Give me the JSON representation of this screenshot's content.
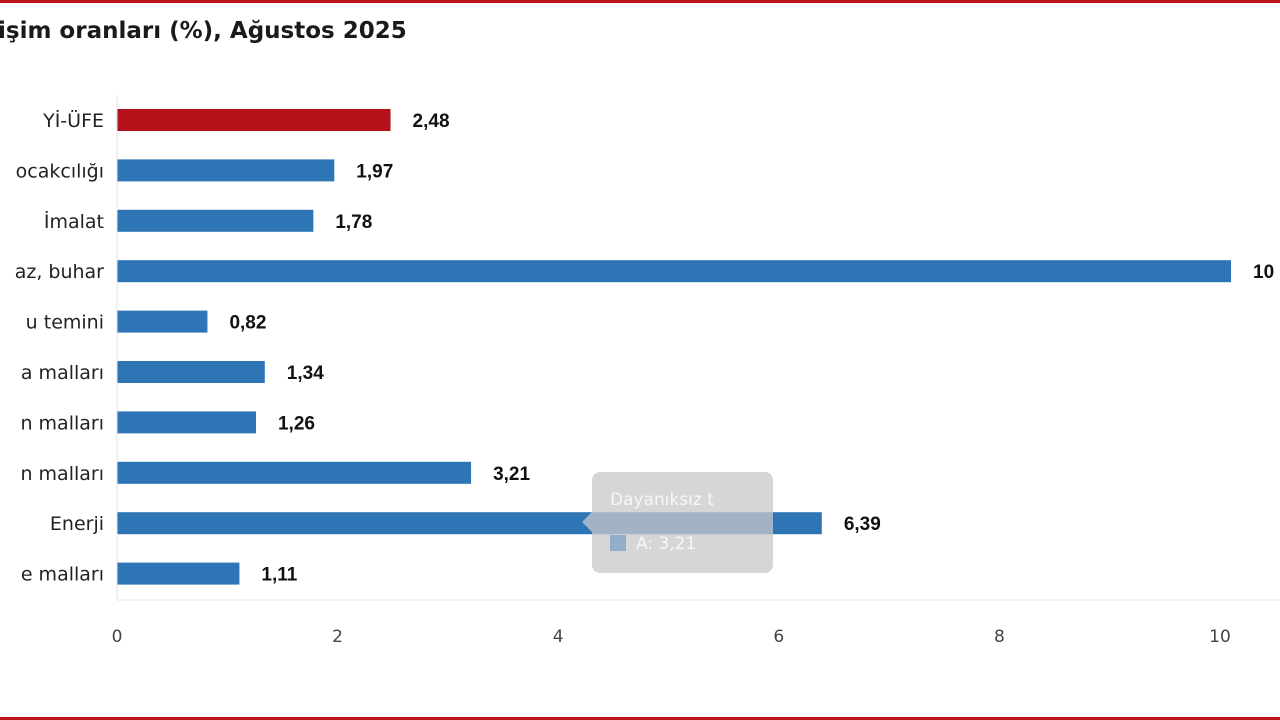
{
  "colors": {
    "frame": "#c0151b",
    "highlight_bar": "#b5121b",
    "bar": "#2e75b6"
  },
  "chart_data": {
    "type": "bar",
    "orientation": "horizontal",
    "title": "işim oranları (%), Ağustos 2025",
    "categories": [
      "Yİ-ÜFE",
      "ocakcılığı",
      "İmalat",
      "az, buhar",
      "u temini",
      "a malları",
      "n malları",
      "n malları",
      "Enerji",
      "e malları"
    ],
    "values": [
      2.48,
      1.97,
      1.78,
      10.1,
      0.82,
      1.34,
      1.26,
      3.21,
      6.39,
      1.11
    ],
    "value_labels": [
      "2,48",
      "1,97",
      "1,78",
      "10",
      "0,82",
      "1,34",
      "1,26",
      "3,21",
      "6,39",
      "1,11"
    ],
    "highlight_index": 0,
    "xlim": [
      0,
      10
    ],
    "x_ticks": [
      "0",
      "2",
      "4",
      "6",
      "8",
      "10"
    ],
    "grid": false,
    "legend": "none",
    "tooltip": {
      "title": "Dayanıksız t",
      "value_text": "A: 3,21"
    }
  }
}
